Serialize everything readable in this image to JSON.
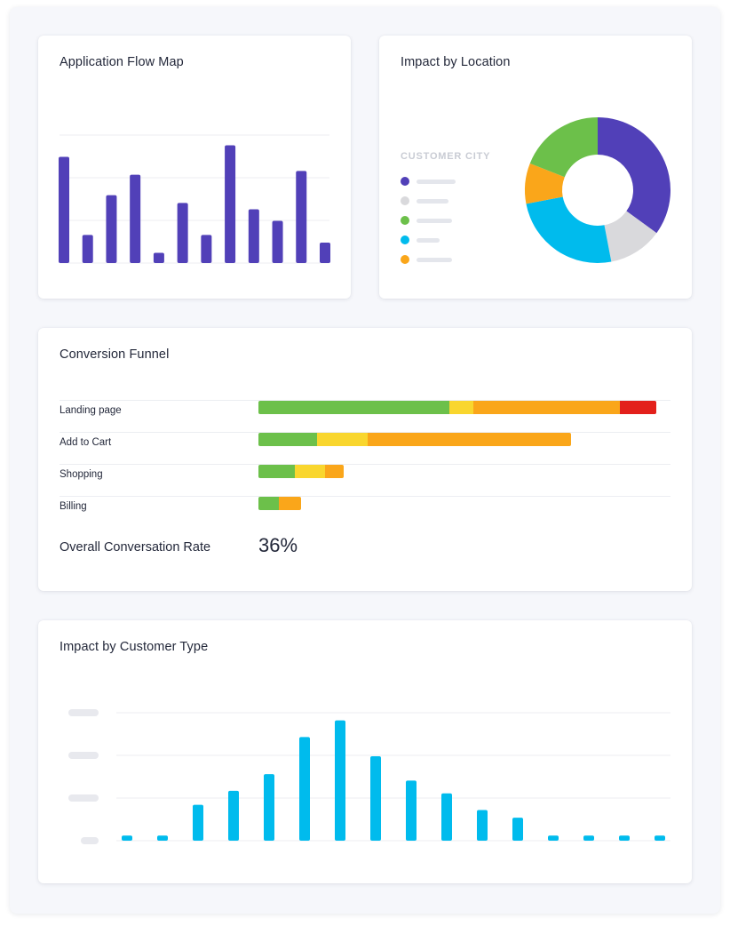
{
  "colors": {
    "purple": "#5140b8",
    "gray": "#d9d9dc",
    "green": "#6cc04a",
    "cyan": "#00bbed",
    "orange": "#faa61a",
    "yellow": "#f9d62e",
    "red": "#e3201b"
  },
  "flow_map": {
    "title": "Application Flow Map",
    "chart_data": {
      "type": "bar",
      "series": [
        {
          "values": [
            83,
            22,
            53,
            69,
            8,
            47,
            22,
            92,
            42,
            33,
            72,
            16
          ]
        }
      ],
      "ylim": [
        0,
        100
      ],
      "grid": true
    }
  },
  "location": {
    "title": "Impact by Location",
    "legend_title": "CUSTOMER CITY",
    "legend": [
      {
        "color": "#5140b8",
        "icon": "dot"
      },
      {
        "color": "#d9d9dc",
        "icon": "dot"
      },
      {
        "color": "#6cc04a",
        "icon": "dot"
      },
      {
        "color": "#00bbed",
        "icon": "dot"
      },
      {
        "color": "#faa61a",
        "icon": "dot"
      }
    ],
    "chart_data": {
      "type": "pie",
      "donut": true,
      "slices": [
        {
          "color": "#5140b8",
          "value": 35
        },
        {
          "color": "#d9d9dc",
          "value": 12
        },
        {
          "color": "#00bbed",
          "value": 25
        },
        {
          "color": "#faa61a",
          "value": 9
        },
        {
          "color": "#6cc04a",
          "value": 19
        }
      ]
    }
  },
  "funnel": {
    "title": "Conversion Funnel",
    "rows": [
      {
        "label": "Landing page",
        "segments": [
          {
            "color": "#6cc04a",
            "value": 47.0
          },
          {
            "color": "#f9d62e",
            "value": 6.0
          },
          {
            "color": "#faa61a",
            "value": 36.0
          },
          {
            "color": "#e3201b",
            "value": 9.0
          }
        ]
      },
      {
        "label": "Add to Cart",
        "segments": [
          {
            "color": "#6cc04a",
            "value": 14.5
          },
          {
            "color": "#f9d62e",
            "value": 12.5
          },
          {
            "color": "#faa61a",
            "value": 50.0
          }
        ]
      },
      {
        "label": "Shopping",
        "segments": [
          {
            "color": "#6cc04a",
            "value": 9.0
          },
          {
            "color": "#f9d62e",
            "value": 7.5
          },
          {
            "color": "#faa61a",
            "value": 4.5
          }
        ]
      },
      {
        "label": "Billing",
        "segments": [
          {
            "color": "#6cc04a",
            "value": 5.0
          },
          {
            "color": "#faa61a",
            "value": 5.5
          }
        ]
      }
    ],
    "rate_label": "Overall Conversation Rate",
    "rate_value": "36%"
  },
  "customer_type": {
    "title": "Impact by Customer Type",
    "chart_data": {
      "type": "bar",
      "series": [
        {
          "values": [
            4,
            4,
            28,
            39,
            52,
            81,
            94,
            66,
            47,
            37,
            24,
            18,
            4,
            4,
            4,
            4
          ]
        }
      ],
      "ylim": [
        0,
        100
      ],
      "grid": true,
      "tick_labels_shown": false
    }
  }
}
